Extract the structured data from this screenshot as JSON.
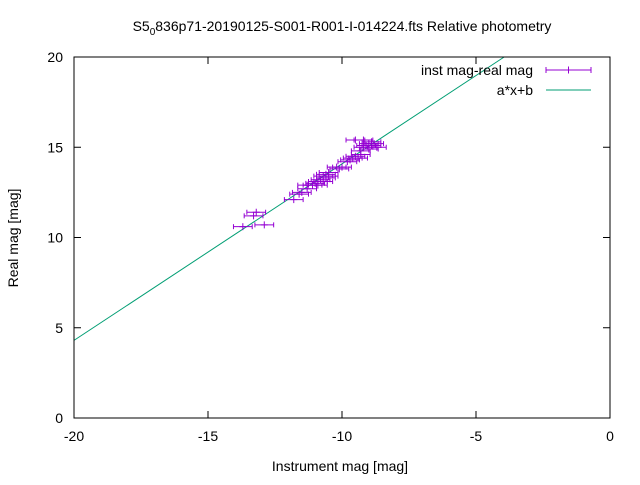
{
  "chart_data": {
    "type": "scatter",
    "title_main": "S5",
    "title_sub": "0",
    "title_rest": "836p71-20190125-S001-R001-I-014224.fts Relative photometry",
    "xlabel": "Instrument mag [mag]",
    "ylabel": "Real mag [mag]",
    "xlim": [
      -20,
      0
    ],
    "ylim": [
      0,
      20
    ],
    "x_ticks": [
      -20,
      -15,
      -10,
      -5,
      0
    ],
    "x_tick_labels": [
      "-20",
      "-15",
      "-10",
      "-5",
      "0"
    ],
    "y_ticks": [
      0,
      5,
      10,
      15,
      20
    ],
    "y_tick_labels": [
      "0",
      "5",
      "10",
      "15",
      "20"
    ],
    "grid": false,
    "legend_position": "top-right",
    "series": [
      {
        "name": "inst mag-real mag",
        "kind": "points_with_xerror",
        "color": "#9400d3",
        "points": [
          {
            "x": -13.7,
            "y": 10.6
          },
          {
            "x": -13.3,
            "y": 11.2
          },
          {
            "x": -13.2,
            "y": 11.4
          },
          {
            "x": -12.9,
            "y": 10.7
          },
          {
            "x": -11.8,
            "y": 12.1
          },
          {
            "x": -11.6,
            "y": 12.4
          },
          {
            "x": -11.5,
            "y": 12.5
          },
          {
            "x": -11.3,
            "y": 12.7
          },
          {
            "x": -11.3,
            "y": 12.9
          },
          {
            "x": -11.1,
            "y": 12.9
          },
          {
            "x": -11.0,
            "y": 13.0
          },
          {
            "x": -10.9,
            "y": 12.9
          },
          {
            "x": -10.9,
            "y": 13.1
          },
          {
            "x": -10.8,
            "y": 13.2
          },
          {
            "x": -10.7,
            "y": 13.1
          },
          {
            "x": -10.7,
            "y": 13.4
          },
          {
            "x": -10.6,
            "y": 13.3
          },
          {
            "x": -10.6,
            "y": 13.5
          },
          {
            "x": -10.5,
            "y": 13.6
          },
          {
            "x": -10.5,
            "y": 13.4
          },
          {
            "x": -10.2,
            "y": 13.9
          },
          {
            "x": -10.1,
            "y": 13.8
          },
          {
            "x": -10.0,
            "y": 13.9
          },
          {
            "x": -9.8,
            "y": 14.2
          },
          {
            "x": -9.7,
            "y": 14.3
          },
          {
            "x": -9.6,
            "y": 14.4
          },
          {
            "x": -9.5,
            "y": 14.5
          },
          {
            "x": -9.4,
            "y": 14.4
          },
          {
            "x": -9.3,
            "y": 14.6
          },
          {
            "x": -9.3,
            "y": 14.8
          },
          {
            "x": -9.2,
            "y": 15.0
          },
          {
            "x": -9.1,
            "y": 15.1
          },
          {
            "x": -9.0,
            "y": 15.2
          },
          {
            "x": -8.9,
            "y": 15.1
          },
          {
            "x": -8.8,
            "y": 15.2
          },
          {
            "x": -9.5,
            "y": 15.4
          },
          {
            "x": -9.2,
            "y": 15.4
          },
          {
            "x": -8.9,
            "y": 15.3
          },
          {
            "x": -9.0,
            "y": 14.9
          },
          {
            "x": -8.7,
            "y": 15.0
          }
        ],
        "xerr": 0.35
      },
      {
        "name": "a*x+b",
        "kind": "line",
        "color": "#009e73",
        "x": [
          -20,
          -3.95
        ],
        "y": [
          4.3,
          20.0
        ]
      }
    ]
  }
}
